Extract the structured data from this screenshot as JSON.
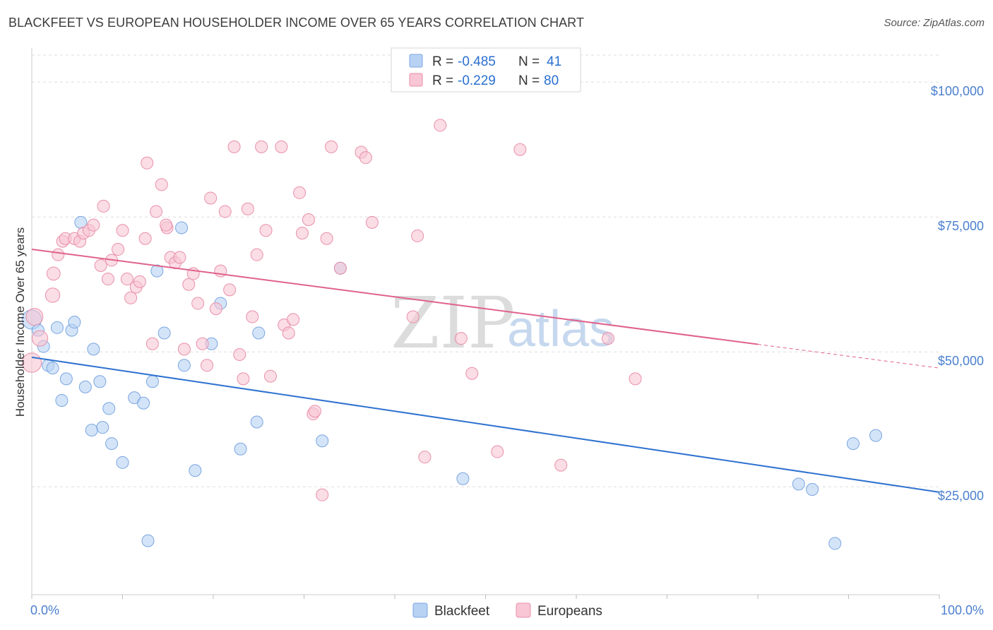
{
  "title": "BLACKFEET VS EUROPEAN HOUSEHOLDER INCOME OVER 65 YEARS CORRELATION CHART",
  "source": "Source: ZipAtlas.com",
  "watermark": {
    "zip": "ZIP",
    "atlas": "atlas"
  },
  "colors": {
    "blackfeet_fill": "#b8d2f4",
    "blackfeet_stroke": "#7aa6e0",
    "blackfeet_line": "#2f72d0",
    "europeans_fill": "#f8c6d4",
    "europeans_stroke": "#e890aa",
    "europeans_line": "#e0628c",
    "tick_label": "#4a7fcf",
    "grid": "#dddddd"
  },
  "stats": {
    "r_label": "R =",
    "n_label": "N =",
    "blackfeet": {
      "r": "-0.485",
      "n": "41"
    },
    "europeans": {
      "r": "-0.229",
      "n": "80"
    }
  },
  "chart_data": {
    "type": "scatter",
    "title": "BLACKFEET VS EUROPEAN HOUSEHOLDER INCOME OVER 65 YEARS CORRELATION CHART",
    "xlabel": "",
    "ylabel": "Householder Income Over 65 years",
    "xlim": [
      0,
      100
    ],
    "ylim": [
      5000,
      105000
    ],
    "x_tick_labels": [
      "0.0%",
      "100.0%"
    ],
    "y_ticks": [
      25000,
      50000,
      75000,
      100000
    ],
    "y_tick_labels": [
      "$25,000",
      "$50,000",
      "$75,000",
      "$100,000"
    ],
    "grid": true,
    "legend_position": "bottom-center",
    "series": [
      {
        "name": "Blackfeet",
        "trend": {
          "x": [
            0,
            100
          ],
          "y": [
            49000,
            24000
          ],
          "solid_until": 100
        },
        "points": [
          [
            0.0,
            56000,
            1.6
          ],
          [
            0.7,
            54000,
            1
          ],
          [
            1.3,
            51000,
            1
          ],
          [
            1.8,
            47500,
            1
          ],
          [
            2.3,
            47000,
            1
          ],
          [
            2.8,
            54500,
            1
          ],
          [
            3.3,
            41000,
            1
          ],
          [
            3.8,
            45000,
            1
          ],
          [
            4.4,
            54000,
            1
          ],
          [
            4.7,
            55500,
            1
          ],
          [
            5.4,
            74000,
            1
          ],
          [
            5.9,
            43500,
            1
          ],
          [
            6.6,
            35500,
            1
          ],
          [
            6.8,
            50500,
            1
          ],
          [
            7.5,
            44500,
            1
          ],
          [
            7.8,
            36000,
            1
          ],
          [
            8.5,
            39500,
            1
          ],
          [
            8.8,
            33000,
            1
          ],
          [
            10.0,
            29500,
            1
          ],
          [
            11.3,
            41500,
            1
          ],
          [
            12.3,
            40500,
            1
          ],
          [
            12.8,
            15000,
            1
          ],
          [
            13.3,
            44500,
            1
          ],
          [
            13.8,
            65000,
            1
          ],
          [
            14.6,
            53500,
            1
          ],
          [
            16.5,
            73000,
            1
          ],
          [
            16.8,
            47500,
            1
          ],
          [
            18.0,
            28000,
            1
          ],
          [
            19.8,
            51500,
            1
          ],
          [
            20.8,
            59000,
            1
          ],
          [
            23.0,
            32000,
            1
          ],
          [
            25.0,
            53500,
            1
          ],
          [
            24.8,
            37000,
            1
          ],
          [
            32.0,
            33500,
            1
          ],
          [
            34.0,
            65500,
            1
          ],
          [
            47.5,
            26500,
            1
          ],
          [
            84.5,
            25500,
            1
          ],
          [
            86.0,
            24500,
            1
          ],
          [
            88.5,
            14500,
            1
          ],
          [
            90.5,
            33000,
            1
          ],
          [
            93.0,
            34500,
            1
          ]
        ]
      },
      {
        "name": "Europeans",
        "trend": {
          "x": [
            0,
            100
          ],
          "y": [
            69000,
            47000
          ],
          "solid_until": 80
        },
        "points": [
          [
            0.0,
            48000,
            1.6
          ],
          [
            0.3,
            56500,
            1.4
          ],
          [
            0.9,
            52500,
            1.3
          ],
          [
            2.3,
            60500,
            1.2
          ],
          [
            2.4,
            64500,
            1.1
          ],
          [
            2.9,
            68000,
            1
          ],
          [
            3.4,
            70500,
            1
          ],
          [
            3.7,
            71000,
            1
          ],
          [
            4.7,
            71000,
            1
          ],
          [
            5.3,
            70500,
            1
          ],
          [
            5.7,
            72000,
            1
          ],
          [
            6.3,
            72500,
            1
          ],
          [
            6.8,
            73500,
            1
          ],
          [
            7.6,
            66000,
            1
          ],
          [
            7.9,
            77000,
            1
          ],
          [
            8.4,
            63500,
            1
          ],
          [
            8.8,
            67000,
            1
          ],
          [
            9.5,
            69000,
            1
          ],
          [
            10.0,
            72500,
            1
          ],
          [
            10.5,
            63500,
            1
          ],
          [
            10.9,
            60000,
            1
          ],
          [
            11.5,
            62000,
            1
          ],
          [
            11.9,
            63000,
            1
          ],
          [
            12.5,
            71000,
            1
          ],
          [
            12.7,
            85000,
            1
          ],
          [
            13.3,
            51500,
            1
          ],
          [
            13.7,
            76000,
            1
          ],
          [
            14.3,
            81000,
            1
          ],
          [
            14.9,
            73000,
            1
          ],
          [
            15.3,
            67500,
            1
          ],
          [
            15.8,
            66500,
            1
          ],
          [
            16.3,
            67500,
            1
          ],
          [
            16.8,
            50500,
            1
          ],
          [
            17.3,
            62500,
            1
          ],
          [
            17.8,
            64500,
            1
          ],
          [
            18.3,
            59000,
            1
          ],
          [
            18.8,
            51500,
            1
          ],
          [
            19.3,
            47500,
            1
          ],
          [
            19.7,
            78500,
            1
          ],
          [
            20.3,
            58000,
            1
          ],
          [
            20.8,
            65000,
            1
          ],
          [
            21.3,
            76000,
            1
          ],
          [
            21.8,
            61500,
            1
          ],
          [
            22.3,
            88000,
            1
          ],
          [
            22.9,
            49500,
            1
          ],
          [
            23.3,
            45000,
            1
          ],
          [
            23.8,
            76500,
            1
          ],
          [
            24.3,
            56500,
            1
          ],
          [
            24.8,
            68000,
            1
          ],
          [
            25.3,
            88000,
            1
          ],
          [
            25.8,
            72500,
            1
          ],
          [
            26.3,
            45500,
            1
          ],
          [
            27.5,
            88000,
            1
          ],
          [
            27.8,
            55000,
            1
          ],
          [
            28.3,
            53500,
            1
          ],
          [
            28.8,
            56000,
            1
          ],
          [
            29.5,
            79500,
            1
          ],
          [
            29.8,
            72000,
            1
          ],
          [
            30.5,
            74500,
            1
          ],
          [
            31.0,
            38500,
            1
          ],
          [
            31.2,
            39000,
            1
          ],
          [
            32.5,
            71000,
            1
          ],
          [
            32.0,
            23500,
            1
          ],
          [
            33.0,
            88000,
            1
          ],
          [
            36.3,
            87000,
            1
          ],
          [
            36.8,
            86000,
            1
          ],
          [
            37.5,
            74000,
            1
          ],
          [
            42.0,
            56500,
            1
          ],
          [
            42.5,
            71500,
            1
          ],
          [
            43.3,
            30500,
            1
          ],
          [
            45.0,
            92000,
            1
          ],
          [
            47.3,
            52500,
            1
          ],
          [
            48.5,
            46000,
            1
          ],
          [
            51.3,
            31500,
            1
          ],
          [
            53.8,
            87500,
            1
          ],
          [
            58.3,
            29000,
            1
          ],
          [
            63.5,
            52500,
            1
          ],
          [
            66.5,
            45000,
            1
          ],
          [
            34.0,
            65500,
            1
          ],
          [
            14.8,
            73500,
            1
          ]
        ]
      }
    ]
  },
  "legend": {
    "items": [
      "Blackfeet",
      "Europeans"
    ]
  }
}
